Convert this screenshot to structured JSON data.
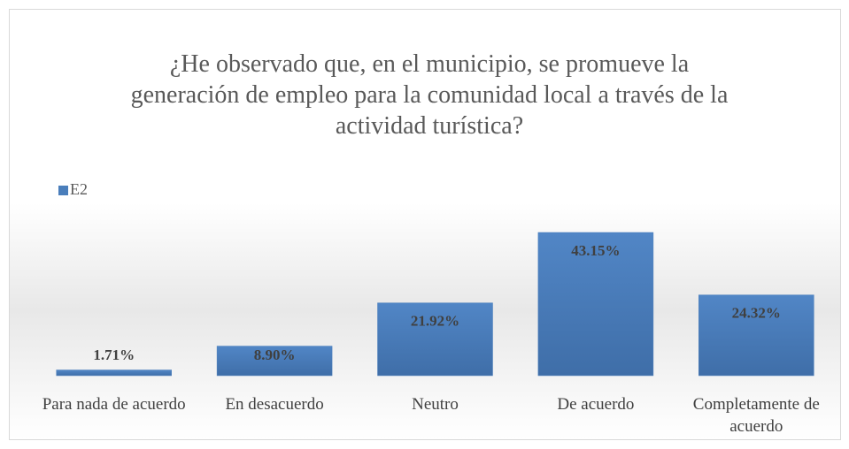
{
  "chart_data": {
    "type": "bar",
    "title": "¿He observado que, en el municipio, se promueve la generación de empleo para la comunidad local a través de la actividad turística?",
    "categories": [
      "Para nada de acuerdo",
      "En desacuerdo",
      "Neutro",
      "De acuerdo",
      "Completamente de acuerdo"
    ],
    "series": [
      {
        "name": "E2",
        "color": "#4a7ebb",
        "values": [
          1.71,
          8.9,
          21.92,
          43.15,
          24.32
        ],
        "value_labels": [
          "1.71%",
          "8.90%",
          "21.92%",
          "43.15%",
          "24.32%"
        ]
      }
    ],
    "legend": "top-left"
  }
}
